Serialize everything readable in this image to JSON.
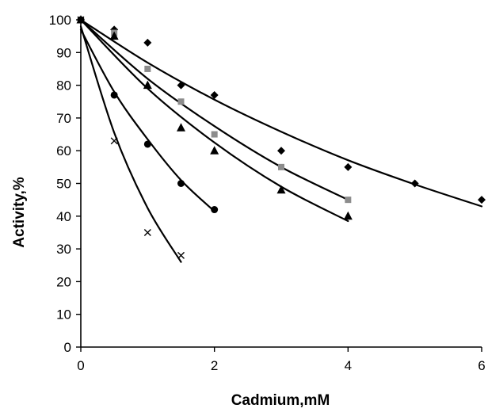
{
  "chart_data": {
    "type": "scatter",
    "title": "",
    "xlabel": "Cadmium,mM",
    "ylabel": "Activity,%",
    "xlim": [
      0,
      6
    ],
    "ylim": [
      0,
      100
    ],
    "x_ticks": [
      0,
      2,
      4,
      6
    ],
    "y_ticks": [
      0,
      10,
      20,
      30,
      40,
      50,
      60,
      70,
      80,
      90,
      100
    ],
    "grid": false,
    "legend": "none",
    "colors": {
      "diamond": "#000000",
      "square": "#8c8c8c",
      "triangle": "#000000",
      "circle": "#000000",
      "cross": "#000000",
      "curve": "#000000"
    },
    "series": [
      {
        "marker": "diamond",
        "points": [
          [
            0,
            100
          ],
          [
            0.5,
            97
          ],
          [
            1,
            93
          ],
          [
            1.5,
            80
          ],
          [
            2,
            77
          ],
          [
            3,
            60
          ],
          [
            4,
            55
          ],
          [
            5,
            50
          ],
          [
            6,
            45
          ]
        ],
        "fit_curve": [
          [
            0,
            100
          ],
          [
            1,
            86.9
          ],
          [
            2,
            75.6
          ],
          [
            3,
            65.8
          ],
          [
            4,
            57.1
          ],
          [
            5,
            49.7
          ],
          [
            6,
            43
          ]
        ]
      },
      {
        "marker": "square",
        "points": [
          [
            0,
            100
          ],
          [
            0.5,
            96
          ],
          [
            1,
            85
          ],
          [
            1.5,
            75
          ],
          [
            2,
            65
          ],
          [
            3,
            55
          ],
          [
            4,
            45
          ]
        ],
        "fit_curve": [
          [
            0,
            100
          ],
          [
            1,
            82
          ],
          [
            2,
            67.5
          ],
          [
            3,
            55
          ],
          [
            4,
            45
          ]
        ]
      },
      {
        "marker": "triangle",
        "points": [
          [
            0,
            100
          ],
          [
            0.5,
            95
          ],
          [
            1,
            80
          ],
          [
            1.5,
            67
          ],
          [
            2,
            60
          ],
          [
            3,
            48
          ],
          [
            4,
            40
          ]
        ],
        "fit_curve": [
          [
            0,
            100
          ],
          [
            1,
            79
          ],
          [
            2,
            62.5
          ],
          [
            3,
            49
          ],
          [
            4,
            38.5
          ]
        ]
      },
      {
        "marker": "circle",
        "points": [
          [
            0,
            100
          ],
          [
            0.5,
            77
          ],
          [
            1,
            62
          ],
          [
            1.5,
            50
          ],
          [
            2,
            42
          ]
        ],
        "fit_curve": [
          [
            0,
            97
          ],
          [
            0.5,
            78
          ],
          [
            1,
            63.5
          ],
          [
            1.5,
            51
          ],
          [
            2,
            41.5
          ]
        ]
      },
      {
        "marker": "cross",
        "points": [
          [
            0,
            100
          ],
          [
            0.5,
            63
          ],
          [
            1,
            35
          ],
          [
            1.5,
            28
          ]
        ],
        "fit_curve": [
          [
            0,
            98
          ],
          [
            0.5,
            65.5
          ],
          [
            1,
            42.5
          ],
          [
            1.5,
            26
          ]
        ]
      }
    ]
  }
}
